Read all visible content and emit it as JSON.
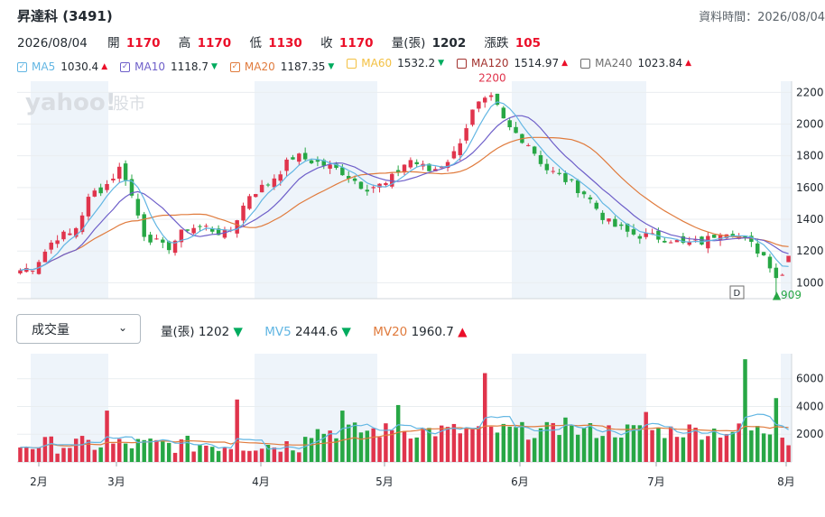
{
  "header": {
    "title": "昇達科 (3491)",
    "data_time_label": "資料時間：2026/08/04"
  },
  "quote": {
    "date": "2026/08/04",
    "open_label": "開",
    "open": "1170",
    "high_label": "高",
    "high": "1170",
    "low_label": "低",
    "low": "1130",
    "close_label": "收",
    "close": "1170",
    "volume_label": "量(張)",
    "volume": "1202",
    "change_label": "漲跌",
    "change": "105"
  },
  "ma_legend": [
    {
      "name": "MA5",
      "value": "1030.4",
      "dir": "up",
      "color": "#62b6e3"
    },
    {
      "name": "MA10",
      "value": "1118.7",
      "dir": "down",
      "color": "#6e5fc9"
    },
    {
      "name": "MA20",
      "value": "1187.35",
      "dir": "down",
      "color": "#e07b3d"
    },
    {
      "name": "MA60",
      "value": "1532.2",
      "dir": "down",
      "color": "#f3c042"
    },
    {
      "name": "MA120",
      "value": "1514.97",
      "dir": "up",
      "color": "#a3322e"
    },
    {
      "name": "MA240",
      "value": "1023.84",
      "dir": "up",
      "color": "#6e6e6e"
    }
  ],
  "volume_panel": {
    "select_value": "成交量",
    "vol_label": "量(張)",
    "vol_value": "1202",
    "vol_dir": "down",
    "mv5_label": "MV5",
    "mv5_value": "2444.6",
    "mv5_dir": "down",
    "mv20_label": "MV20",
    "mv20_value": "1960.7",
    "mv20_dir": "up"
  },
  "watermark": {
    "logo": "yahoo!",
    "suffix": "股市"
  },
  "colors": {
    "up": "#e0344c",
    "down": "#27a745",
    "ma5": "#62b6e3",
    "ma10": "#6e5fc9",
    "ma20": "#e07b3d",
    "shade": "#eef4fa"
  },
  "chart_data": {
    "type": "candlestick",
    "price_ticks": [
      1000,
      1200,
      1400,
      1600,
      1800,
      2000,
      2200
    ],
    "ylim": [
      900,
      2270
    ],
    "volume_ticks": [
      2000,
      4000,
      6000
    ],
    "volume_ylim": [
      0,
      7800
    ],
    "x_month_labels": [
      "2月",
      "3月",
      "4月",
      "5月",
      "6月",
      "7月",
      "8月"
    ],
    "annotations": {
      "high": "2200",
      "low": "909",
      "marker": "D"
    },
    "candles": [],
    "volume": [],
    "ma5": [],
    "ma10": [],
    "ma20": [],
    "mv5": [],
    "mv20": []
  }
}
